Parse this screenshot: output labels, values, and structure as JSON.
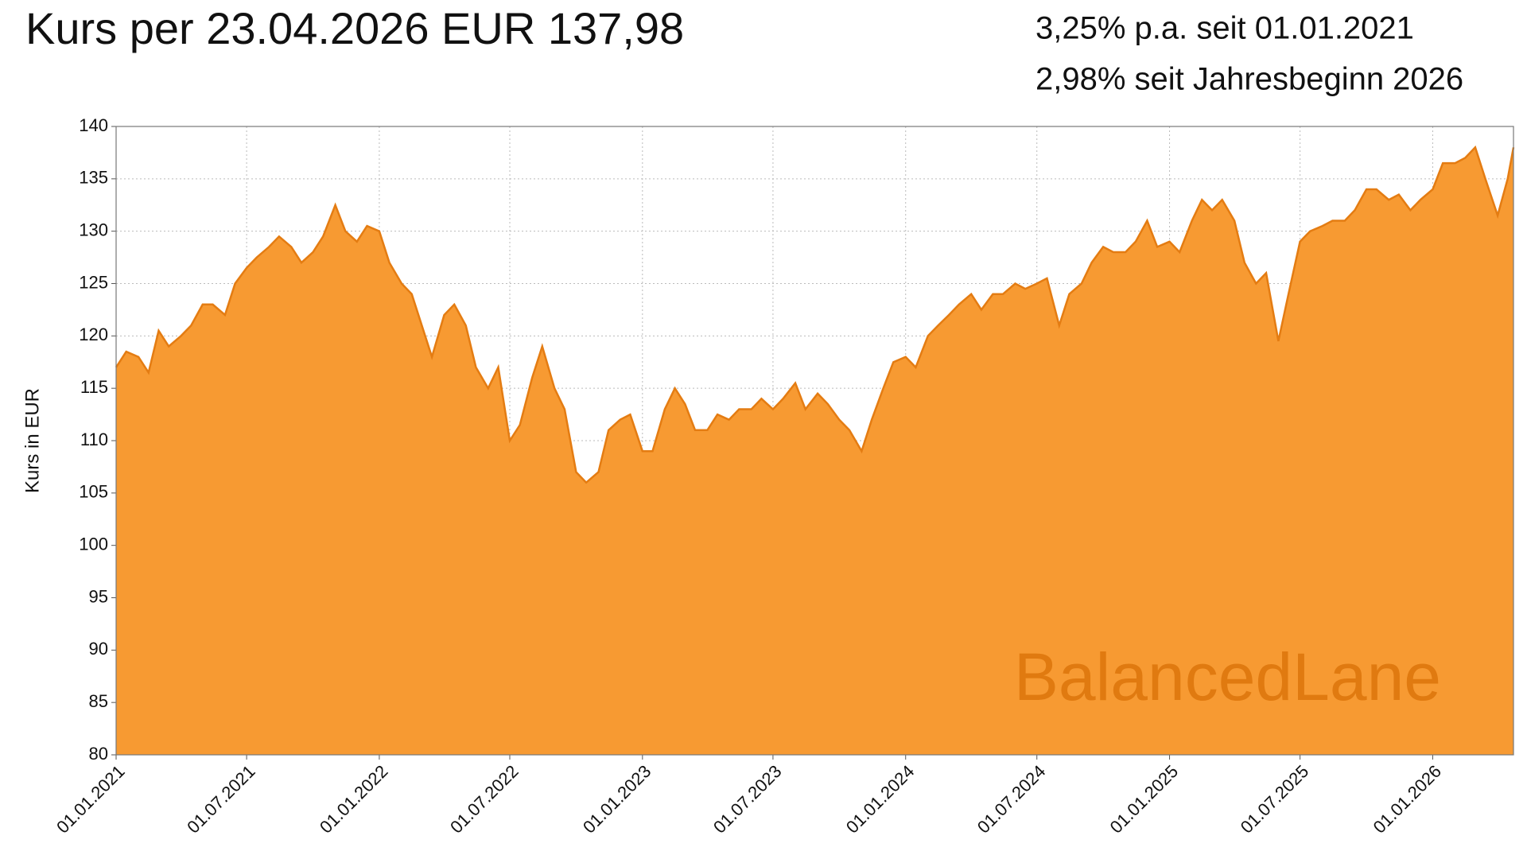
{
  "chart_data": {
    "type": "area",
    "title": "Kurs per 23.04.2026 EUR 137,98",
    "subtitle": [
      "3,25% p.a. seit 01.01.2021",
      "2,98% seit Jahresbeginn 2026"
    ],
    "ylabel": "Kurs in EUR",
    "watermark": "BalancedLane",
    "color": "#f79a32",
    "line_color": "#e47c12",
    "grid": true,
    "ylim": [
      80,
      140
    ],
    "yticks": [
      80,
      85,
      90,
      95,
      100,
      105,
      110,
      115,
      120,
      125,
      130,
      135,
      140
    ],
    "xlim": [
      "01.01.2021",
      "23.04.2026"
    ],
    "xticks": [
      "01.01.2021",
      "01.07.2021",
      "01.01.2022",
      "01.07.2022",
      "01.01.2023",
      "01.07.2023",
      "01.01.2024",
      "01.07.2024",
      "01.01.2025",
      "01.07.2025",
      "01.01.2026"
    ],
    "x": [
      "01.01.2021",
      "15.01.2021",
      "01.02.2021",
      "15.02.2021",
      "01.03.2021",
      "15.03.2021",
      "01.04.2021",
      "15.04.2021",
      "01.05.2021",
      "15.05.2021",
      "01.06.2021",
      "15.06.2021",
      "01.07.2021",
      "15.07.2021",
      "01.08.2021",
      "15.08.2021",
      "01.09.2021",
      "15.09.2021",
      "01.10.2021",
      "15.10.2021",
      "01.11.2021",
      "15.11.2021",
      "01.12.2021",
      "15.12.2021",
      "01.01.2022",
      "15.01.2022",
      "01.02.2022",
      "15.02.2022",
      "01.03.2022",
      "15.03.2022",
      "01.04.2022",
      "15.04.2022",
      "01.05.2022",
      "15.05.2022",
      "01.06.2022",
      "15.06.2022",
      "01.07.2022",
      "15.07.2022",
      "01.08.2022",
      "15.08.2022",
      "01.09.2022",
      "15.09.2022",
      "01.10.2022",
      "15.10.2022",
      "01.11.2022",
      "15.11.2022",
      "01.12.2022",
      "15.12.2022",
      "01.01.2023",
      "15.01.2023",
      "01.02.2023",
      "15.02.2023",
      "01.03.2023",
      "15.03.2023",
      "01.04.2023",
      "15.04.2023",
      "01.05.2023",
      "15.05.2023",
      "01.06.2023",
      "15.06.2023",
      "01.07.2023",
      "15.07.2023",
      "01.08.2023",
      "15.08.2023",
      "01.09.2023",
      "15.09.2023",
      "01.10.2023",
      "15.10.2023",
      "01.11.2023",
      "15.11.2023",
      "01.12.2023",
      "15.12.2023",
      "01.01.2024",
      "15.01.2024",
      "01.02.2024",
      "15.02.2024",
      "01.03.2024",
      "15.03.2024",
      "01.04.2024",
      "15.04.2024",
      "01.05.2024",
      "15.05.2024",
      "01.06.2024",
      "15.06.2024",
      "01.07.2024",
      "15.07.2024",
      "01.08.2024",
      "15.08.2024",
      "01.09.2024",
      "15.09.2024",
      "01.10.2024",
      "15.10.2024",
      "01.11.2024",
      "15.11.2024",
      "01.12.2024",
      "15.12.2024",
      "01.01.2025",
      "15.01.2025",
      "01.02.2025",
      "15.02.2025",
      "01.03.2025",
      "15.03.2025",
      "01.04.2025",
      "15.04.2025",
      "01.05.2025",
      "15.05.2025",
      "01.06.2025",
      "15.06.2025",
      "01.07.2025",
      "15.07.2025",
      "01.08.2025",
      "15.08.2025",
      "01.09.2025",
      "15.09.2025",
      "01.10.2025",
      "15.10.2025",
      "01.11.2025",
      "15.11.2025",
      "01.12.2025",
      "15.12.2025",
      "01.01.2026",
      "15.01.2026",
      "01.02.2026",
      "15.02.2026",
      "01.03.2026",
      "15.03.2026",
      "01.04.2026",
      "15.04.2026",
      "23.04.2026"
    ],
    "values": [
      117,
      118.5,
      118,
      116.5,
      120.5,
      119,
      120,
      121,
      123,
      123,
      122,
      125,
      126.5,
      127.5,
      128.5,
      129.5,
      128.5,
      127,
      128,
      129.5,
      132.5,
      130,
      129,
      130.5,
      130,
      127,
      125,
      124,
      121,
      118,
      122,
      123,
      121,
      117,
      115,
      117,
      110,
      111.5,
      116,
      119,
      115,
      113,
      107,
      106,
      107,
      111,
      112,
      112.5,
      109,
      109,
      113,
      115,
      113.5,
      111,
      111,
      112.5,
      112,
      113,
      113,
      114,
      113,
      114,
      115.5,
      113,
      114.5,
      113.5,
      112,
      111,
      109,
      112,
      115,
      117.5,
      118,
      117,
      120,
      121,
      122,
      123,
      124,
      122.5,
      124,
      124,
      125,
      124.5,
      125,
      125.5,
      121,
      124,
      125,
      127,
      128.5,
      128,
      128,
      129,
      131,
      128.5,
      129,
      128,
      131,
      133,
      132,
      133,
      131,
      127,
      125,
      126,
      119.5,
      124,
      129,
      130,
      130.5,
      131,
      131,
      132,
      134,
      134,
      133,
      133.5,
      132,
      133,
      134,
      136.5,
      136.5,
      137,
      138,
      135,
      131.5,
      135,
      138
    ]
  }
}
